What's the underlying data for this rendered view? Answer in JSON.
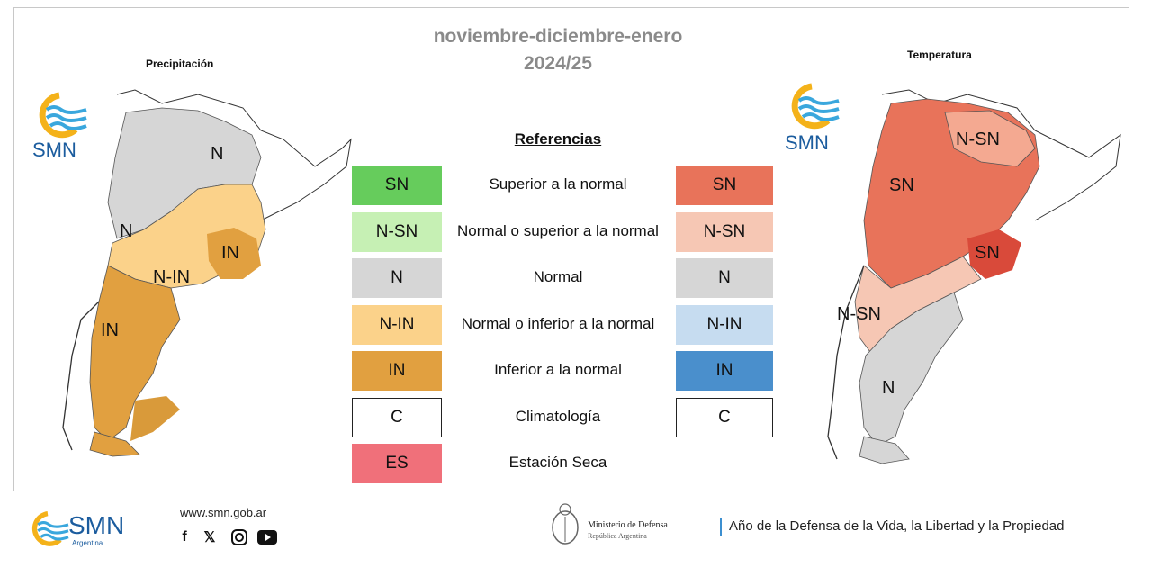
{
  "header": {
    "title_line1": "noviembre-diciembre-enero",
    "title_line2": "2024/25"
  },
  "precip_panel": {
    "title": "Precipitación",
    "labels": [
      "N",
      "N",
      "N-IN",
      "IN",
      "IN"
    ]
  },
  "temp_panel": {
    "title": "Temperatura",
    "labels": [
      "N-SN",
      "SN",
      "SN",
      "N-SN",
      "N"
    ]
  },
  "logo": {
    "text": "SMN",
    "sub": "Argentina"
  },
  "legend": {
    "title": "Referencias",
    "rows": [
      {
        "precip_code": "SN",
        "precip_color": "#66cc5c",
        "desc": "Superior a la normal",
        "temp_code": "SN",
        "temp_color": "#e8735a"
      },
      {
        "precip_code": "N-SN",
        "precip_color": "#c6f0b4",
        "desc": "Normal o superior a la normal",
        "temp_code": "N-SN",
        "temp_color": "#f6c7b4"
      },
      {
        "precip_code": "N",
        "precip_color": "#d6d6d6",
        "desc": "Normal",
        "temp_code": "N",
        "temp_color": "#d6d6d6"
      },
      {
        "precip_code": "N-IN",
        "precip_color": "#fbd28a",
        "desc": "Normal o inferior a la normal",
        "temp_code": "N-IN",
        "temp_color": "#c6dcf0"
      },
      {
        "precip_code": "IN",
        "precip_color": "#e1a040",
        "desc": "Inferior a la normal",
        "temp_code": "IN",
        "temp_color": "#4a8fcc"
      },
      {
        "precip_code": "C",
        "precip_color": "#ffffff",
        "desc": "Climatología",
        "temp_code": "C",
        "temp_color": "#ffffff"
      },
      {
        "precip_code": "ES",
        "precip_color": "#f0707a",
        "desc": "Estación Seca"
      }
    ]
  },
  "footer": {
    "url": "www.smn.gob.ar",
    "social": [
      "facebook-icon",
      "x-icon",
      "instagram-icon",
      "youtube-icon"
    ],
    "ministerio_line1": "Ministerio de Defensa",
    "ministerio_line2": "República Argentina",
    "lema": "Año de la Defensa de la Vida, la Libertad y la Propiedad"
  },
  "colors": {
    "title_gray": "#8a8a8a",
    "smn_blue": "#1b5c9e",
    "smn_yellow": "#f4b21a",
    "smn_light_blue": "#3aa7dd"
  }
}
